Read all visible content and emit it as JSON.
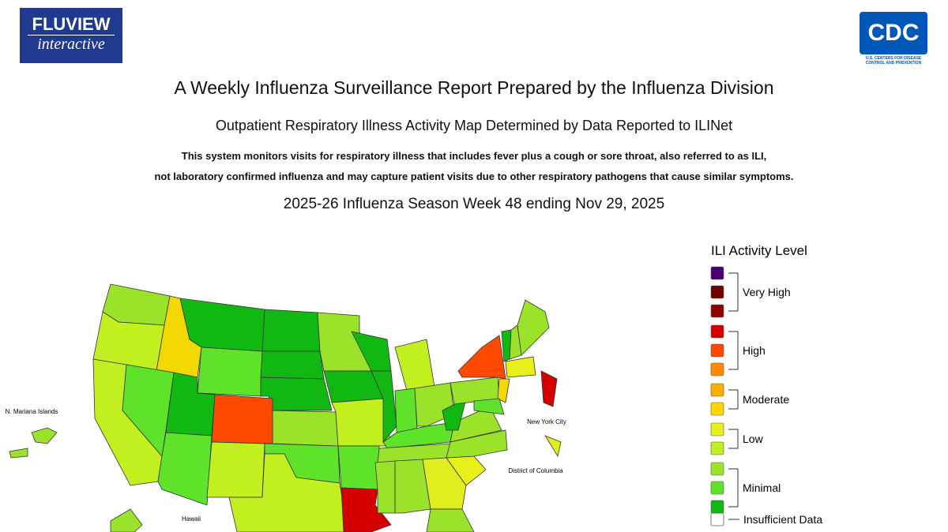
{
  "header": {
    "fluview": {
      "title": "FLUVIEW",
      "subtitle": "interactive"
    },
    "cdc": {
      "title": "CDC",
      "subtitle": "U.S. CENTERS FOR DISEASE CONTROL AND PREVENTION"
    }
  },
  "title": "A Weekly Influenza Surveillance Report Prepared by the Influenza Division",
  "subtitle": "Outpatient Respiratory Illness Activity Map Determined by Data Reported to ILINet",
  "description": [
    "This system monitors visits for respiratory illness that includes fever plus a cough or sore throat, also referred to as ILI,",
    "not laboratory confirmed influenza and may capture patient visits due to other respiratory pathogens that cause similar symptoms."
  ],
  "week": "2025-26 Influenza Season Week 48 ending Nov 29, 2025",
  "map": {
    "labels": [
      "N. Mariana Islands",
      "New York City",
      "District of Columbia",
      "Hawaii"
    ]
  },
  "legend": {
    "title": "ILI Activity Level",
    "groups": [
      {
        "label": "Very High",
        "colors": [
          "#4b0072",
          "#6e0000",
          "#8e0000"
        ]
      },
      {
        "label": "High",
        "colors": [
          "#d40000",
          "#ff4a00",
          "#ff8a00"
        ]
      },
      {
        "label": "Moderate",
        "colors": [
          "#ffae00",
          "#ffd700"
        ]
      },
      {
        "label": "Low",
        "colors": [
          "#e8f01a",
          "#c2ef1f"
        ]
      },
      {
        "label": "Minimal",
        "colors": [
          "#9be22a",
          "#5ee22a",
          "#12b812"
        ]
      }
    ],
    "insufficient": {
      "label": "Insufficient Data",
      "color": "#ffffff"
    }
  }
}
